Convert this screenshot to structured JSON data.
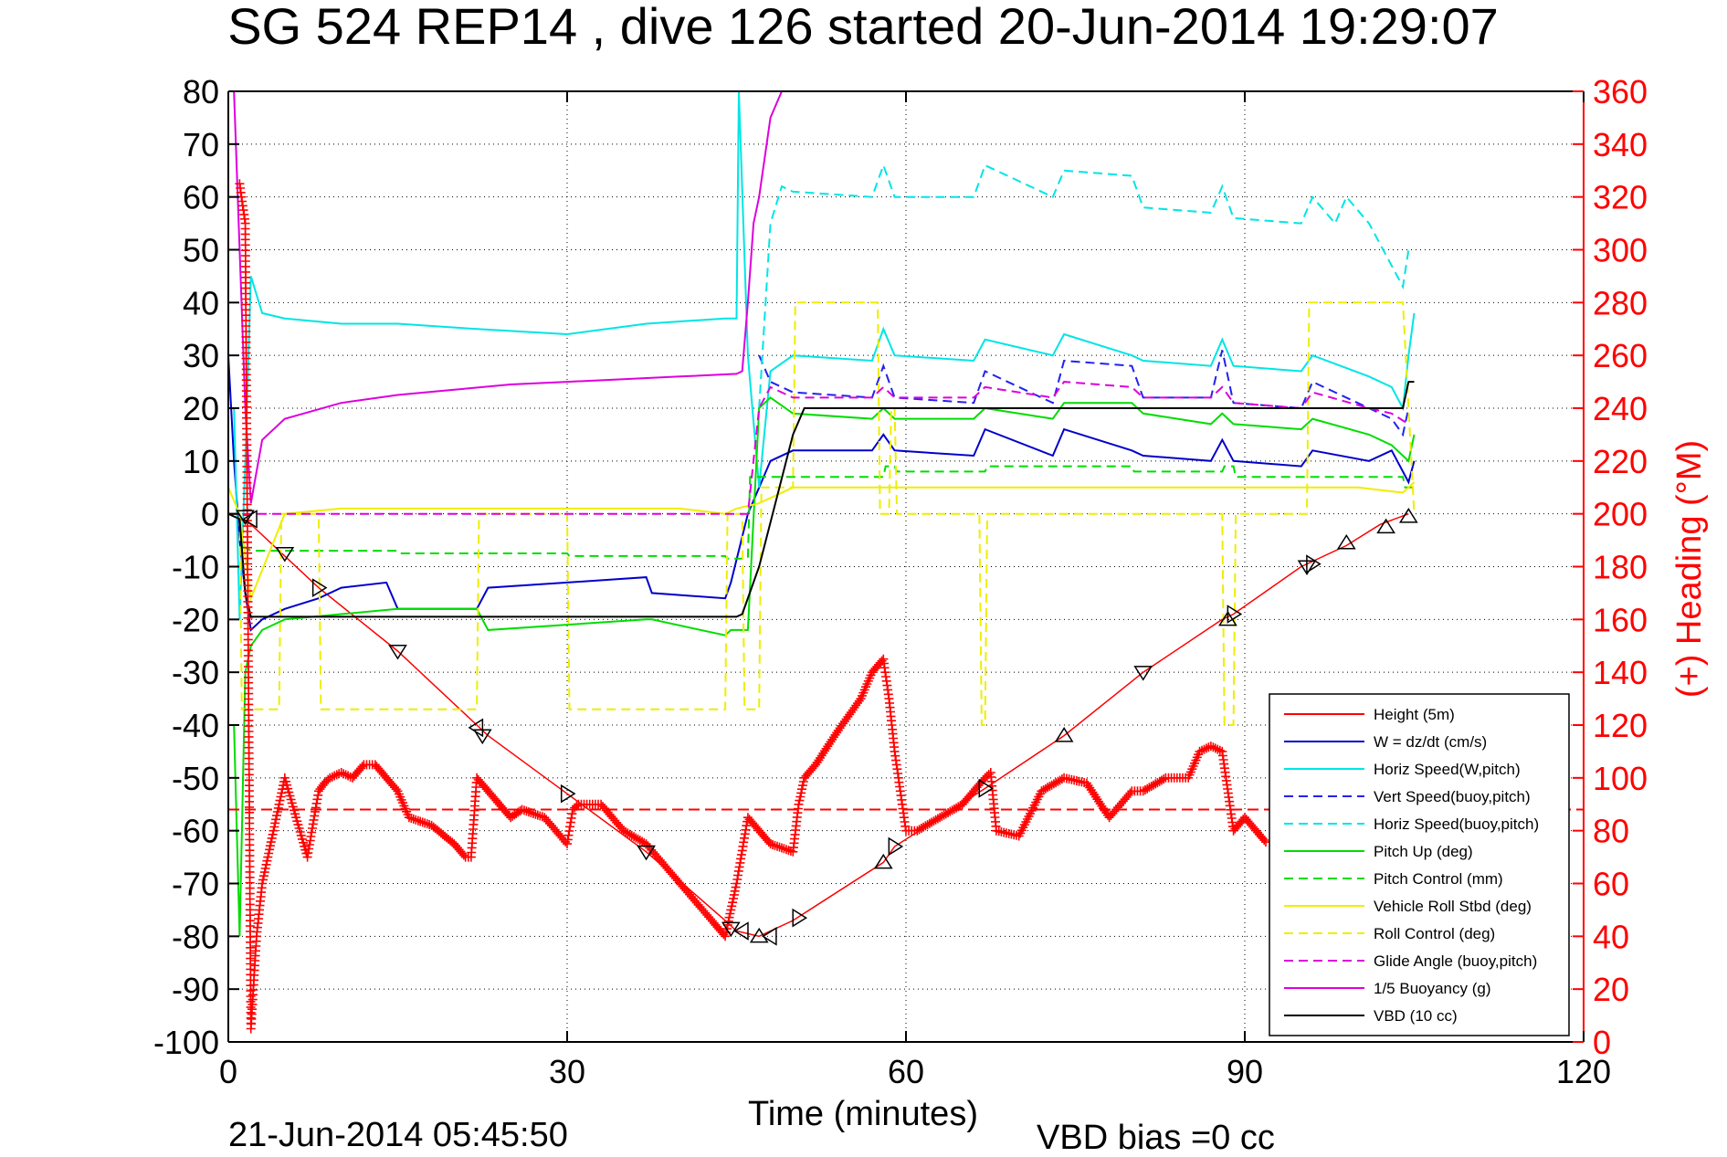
{
  "chart_data": {
    "type": "line",
    "title": "SG 524   REP14  , dive 126 started 20-Jun-2014 19:29:07",
    "xlabel": "Time (minutes)",
    "ylabel_right": "(+) Heading (°M)",
    "bottom_left_text": "21-Jun-2014 05:45:50",
    "bottom_text": "VBD bias =0 cc",
    "xlim": [
      0,
      120
    ],
    "ylim": [
      -100,
      80
    ],
    "ylim_right": [
      0,
      360
    ],
    "x_ticks": [
      "0",
      "30",
      "60",
      "90",
      "120"
    ],
    "y_ticks": [
      "80",
      "70",
      "60",
      "50",
      "40",
      "30",
      "20",
      "10",
      "0",
      "-10",
      "-20",
      "-30",
      "-40",
      "-50",
      "-60",
      "-70",
      "-80",
      "-90",
      "-100"
    ],
    "y_ticks_right": [
      "360",
      "340",
      "320",
      "300",
      "280",
      "260",
      "240",
      "220",
      "200",
      "180",
      "160",
      "140",
      "120",
      "100",
      "80",
      "60",
      "40",
      "20",
      "0"
    ],
    "grid": true,
    "legend_position": "bottom-right",
    "colors": {
      "height": "#ff0000",
      "w": "#0000cc",
      "cyan": "#00e5e5",
      "green": "#00dd00",
      "yellow": "#eeee00",
      "magenta": "#dd00dd",
      "vbd": "#000000",
      "heading": "#ff0000",
      "right_axis": "#ff0000"
    },
    "series": [
      {
        "name": "Height (5m)",
        "key": "height",
        "color": "#ff0000",
        "style": "solid",
        "x": [
          0,
          1,
          2,
          5,
          8,
          15,
          22,
          23,
          30,
          37,
          44,
          45,
          47,
          50,
          58,
          59,
          67,
          74,
          81,
          88,
          89,
          95,
          99,
          102,
          104.5
        ],
        "y": [
          0,
          -1,
          -2,
          -8,
          -14,
          -26,
          -40,
          -42,
          -53,
          -64,
          -77,
          -79,
          -80,
          -77,
          -66,
          -63,
          -52,
          -42,
          -30,
          -20,
          -19,
          -10,
          -6,
          -2,
          0
        ]
      },
      {
        "name": "W = dz/dt (cm/s)",
        "key": "w",
        "color": "#0000cc",
        "style": "solid",
        "x": [
          0,
          0.5,
          1,
          1.5,
          2,
          3,
          5,
          8,
          10,
          14,
          15,
          22,
          23,
          30,
          37,
          37.5,
          44,
          44.5,
          46,
          48,
          50,
          57,
          58,
          59,
          66,
          67,
          73,
          74,
          80,
          81,
          87,
          88,
          89,
          95,
          96,
          101,
          103,
          104.5,
          105
        ],
        "y": [
          30,
          10,
          -5,
          -15,
          -22,
          -20,
          -18,
          -16,
          -14,
          -13,
          -18,
          -18,
          -14,
          -13,
          -12,
          -15,
          -16,
          -13,
          0,
          10,
          12,
          12,
          15,
          12,
          11,
          16,
          11,
          16,
          12,
          11,
          10,
          14,
          10,
          9,
          12,
          10,
          12,
          6,
          10
        ]
      },
      {
        "name": "Horiz Speed(W,pitch)",
        "key": "hspeed",
        "color": "#00e5e5",
        "style": "solid",
        "x": [
          0.5,
          1,
          1.5,
          2,
          3,
          5,
          10,
          15,
          22,
          30,
          37,
          44,
          45,
          45.2,
          46,
          47,
          48,
          50,
          57,
          58,
          59,
          66,
          67,
          73,
          74,
          80,
          81,
          87,
          88,
          89,
          95,
          96,
          101,
          103,
          104,
          104.5,
          105
        ],
        "y": [
          20,
          -20,
          10,
          45,
          38,
          37,
          36,
          36,
          35,
          34,
          36,
          37,
          37,
          80,
          30,
          5,
          27,
          30,
          29,
          35,
          30,
          29,
          33,
          30,
          34,
          30,
          29,
          28,
          33,
          28,
          27,
          30,
          26,
          24,
          20,
          30,
          38
        ]
      },
      {
        "name": "Vert Speed(buoy,pitch)",
        "key": "vspeed",
        "color": "#2222ee",
        "style": "dashed",
        "x": [
          47,
          48,
          50,
          57,
          58,
          59,
          66,
          67,
          73,
          74,
          80,
          81,
          87,
          88,
          89,
          95,
          96,
          101,
          103,
          104,
          104.5
        ],
        "y": [
          30,
          25,
          23,
          22,
          28,
          22,
          21,
          27,
          21,
          29,
          28,
          22,
          22,
          31,
          21,
          20,
          25,
          20,
          18,
          15,
          20
        ]
      },
      {
        "name": "Horiz Speed(buoy,pitch)",
        "key": "hspeed_buoy",
        "color": "#00e5e5",
        "style": "dashed",
        "x": [
          47,
          48,
          49,
          50,
          57,
          58,
          59,
          66,
          67,
          73,
          74,
          80,
          81,
          87,
          88,
          89,
          95,
          96,
          98,
          99,
          101,
          103,
          104,
          104.5
        ],
        "y": [
          20,
          55,
          62,
          61,
          60,
          66,
          60,
          60,
          66,
          60,
          65,
          64,
          58,
          57,
          62,
          56,
          55,
          60,
          55,
          60,
          55,
          47,
          43,
          50
        ]
      },
      {
        "name": "Pitch Up (deg)",
        "key": "pitch",
        "color": "#00dd00",
        "style": "solid",
        "x": [
          0.5,
          1,
          1.5,
          2,
          3,
          5,
          10,
          15,
          22,
          23,
          30,
          37,
          37.5,
          44,
          44.5,
          46,
          47,
          48,
          50,
          57,
          58,
          59,
          66,
          67,
          73,
          74,
          80,
          81,
          87,
          88,
          89,
          95,
          96,
          101,
          103,
          104.5,
          105
        ],
        "y": [
          -40,
          -80,
          -30,
          -25,
          -22,
          -20,
          -19,
          -18,
          -18,
          -22,
          -21,
          -20,
          -20,
          -23,
          -22,
          -22,
          20,
          22,
          19,
          18,
          20,
          18,
          18,
          20,
          18,
          21,
          21,
          19,
          17,
          19,
          17,
          16,
          18,
          15,
          13,
          10,
          15
        ]
      },
      {
        "name": "Pitch Control (mm)",
        "key": "pitch_ctrl",
        "color": "#00dd00",
        "style": "dashed",
        "x": [
          0,
          1,
          1.2,
          2,
          15,
          15.2,
          30,
          30.2,
          44,
          44.2,
          45,
          46,
          46.2,
          50,
          58,
          58.2,
          59,
          59.2,
          67,
          67.2,
          80,
          80.2,
          88,
          88.2,
          89,
          89.2,
          104,
          104.2,
          105
        ],
        "y": [
          0,
          0,
          -6,
          -7,
          -7,
          -7.5,
          -7.5,
          -8,
          -8,
          -8.5,
          -8.5,
          -8.5,
          7,
          7,
          7,
          9,
          9,
          8,
          8,
          9,
          9,
          8,
          8,
          9,
          9,
          7,
          7,
          5,
          5
        ]
      },
      {
        "name": "Vehicle Roll Stbd (deg)",
        "key": "roll",
        "color": "#eeee00",
        "style": "solid",
        "x": [
          0,
          1,
          2,
          5,
          10,
          20,
          30,
          40,
          44,
          45,
          47,
          48,
          50,
          60,
          70,
          80,
          90,
          100,
          104,
          105
        ],
        "y": [
          5,
          0,
          -16,
          0,
          1,
          1,
          1,
          1,
          0,
          1,
          2,
          3,
          5,
          5,
          5,
          5,
          5,
          5,
          4,
          6
        ]
      },
      {
        "name": "Roll Control (deg)",
        "key": "roll_ctrl",
        "color": "#eeee00",
        "style": "dashed",
        "x": [
          0,
          1,
          1.2,
          4.5,
          4.7,
          8,
          8.2,
          22,
          22.2,
          30,
          30.2,
          44,
          44.2,
          45.5,
          45.7,
          47,
          47.2,
          50,
          50.2,
          57.5,
          57.7,
          58.5,
          58.7,
          59,
          59.2,
          66.5,
          66.7,
          67,
          67.2,
          88,
          88.2,
          89,
          89.2,
          95.5,
          95.7,
          104,
          105
        ],
        "y": [
          0,
          0,
          -37,
          -37,
          0,
          0,
          -37,
          -37,
          0,
          0,
          -37,
          -37,
          0,
          0,
          -37,
          -37,
          5,
          5,
          40,
          40,
          0,
          0,
          20,
          20,
          0,
          0,
          -40,
          -40,
          0,
          0,
          -40,
          -40,
          0,
          0,
          40,
          40,
          0
        ]
      },
      {
        "name": "Glide Angle (buoy,pitch)",
        "key": "glide",
        "color": "#dd00dd",
        "style": "dashed",
        "x": [
          0,
          46,
          47,
          48,
          50,
          57,
          58,
          59,
          66,
          67,
          73,
          74,
          80,
          81,
          87,
          88,
          89,
          95,
          96,
          101,
          103,
          104.5
        ],
        "y": [
          0,
          0,
          20,
          24,
          22,
          22,
          24,
          22,
          22,
          24,
          22,
          25,
          24,
          22,
          22,
          24,
          21,
          20,
          23,
          20,
          19,
          17
        ]
      },
      {
        "name": "1/5 Buoyancy (g)",
        "key": "buoyancy",
        "color": "#dd00dd",
        "style": "solid",
        "x": [
          0.5,
          1,
          1.5,
          2,
          3,
          5,
          10,
          15,
          20,
          25,
          30,
          35,
          40,
          45,
          45.5,
          46,
          46.5,
          47,
          48,
          49
        ],
        "y": [
          80,
          50,
          20,
          2,
          14,
          18,
          21,
          22.5,
          23.5,
          24.5,
          25,
          25.5,
          26,
          26.5,
          27,
          40,
          55,
          60,
          75,
          80
        ]
      },
      {
        "name": "VBD (10 cc)",
        "key": "vbd",
        "color": "#000000",
        "style": "solid",
        "x": [
          0,
          1,
          1.5,
          2,
          45,
          45.5,
          47,
          50,
          51,
          104,
          104.5,
          105
        ],
        "y": [
          0,
          -1,
          -15,
          -19.5,
          -19.5,
          -19,
          -10,
          15,
          20,
          20,
          25,
          25
        ]
      }
    ],
    "heading": {
      "name": "(+) Heading (°M)",
      "color": "#ff0000",
      "marker": "+",
      "mean_line": 88,
      "x": [
        1,
        1.5,
        2,
        2.5,
        3,
        4,
        5,
        6,
        7,
        8,
        8.5,
        9,
        10,
        11,
        12,
        13,
        14,
        15,
        16,
        18,
        20,
        21,
        21.5,
        22,
        23,
        24,
        25,
        26,
        28,
        30,
        30.5,
        31,
        33,
        35,
        37,
        39,
        41,
        43,
        44,
        45,
        46,
        47,
        48,
        50,
        50.5,
        51,
        52,
        54,
        56,
        57,
        58,
        58.5,
        59,
        59.5,
        60,
        61,
        63,
        65,
        66,
        67,
        67.5,
        68,
        70,
        72,
        74,
        76,
        78,
        80,
        81,
        83,
        85,
        86,
        87,
        88,
        89,
        90,
        91,
        92
      ],
      "y": [
        325,
        310,
        5,
        40,
        60,
        80,
        100,
        85,
        70,
        95,
        98,
        100,
        102,
        100,
        105,
        105,
        100,
        95,
        85,
        82,
        75,
        70,
        70,
        100,
        95,
        90,
        85,
        88,
        85,
        75,
        88,
        90,
        90,
        80,
        75,
        65,
        55,
        45,
        40,
        60,
        85,
        80,
        75,
        72,
        90,
        100,
        105,
        118,
        130,
        140,
        145,
        130,
        110,
        95,
        80,
        80,
        85,
        90,
        95,
        100,
        102,
        80,
        78,
        95,
        100,
        98,
        85,
        95,
        95,
        100,
        100,
        110,
        112,
        110,
        80,
        85,
        80,
        75
      ]
    },
    "markers": {
      "down_triangles": [
        [
          1.5,
          -0.5
        ],
        [
          5,
          -7.5
        ],
        [
          15,
          -26
        ],
        [
          22.5,
          -42
        ],
        [
          37,
          -64
        ],
        [
          44.5,
          -78.5
        ],
        [
          81,
          -30
        ],
        [
          95.5,
          -10
        ]
      ],
      "up_triangles": [
        [
          47,
          -80
        ],
        [
          58,
          -66
        ],
        [
          74,
          -42
        ],
        [
          88.5,
          -20
        ],
        [
          99,
          -5.5
        ],
        [
          102.5,
          -2.5
        ],
        [
          104.5,
          -0.5
        ]
      ],
      "right_triangles": [
        [
          8,
          -14
        ],
        [
          30,
          -53
        ],
        [
          50.5,
          -76.5
        ],
        [
          59,
          -63
        ],
        [
          67,
          -52
        ],
        [
          89,
          -19
        ],
        [
          96,
          -9.5
        ]
      ],
      "left_triangles": [
        [
          2,
          -1
        ],
        [
          22,
          -40.5
        ],
        [
          48,
          -80
        ],
        [
          45.5,
          -79
        ]
      ]
    }
  }
}
